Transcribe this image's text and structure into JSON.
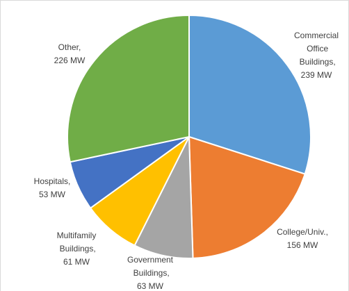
{
  "chart_data": {
    "type": "pie",
    "categories": [
      "Commercial Office Buildings,",
      "College/Univ.,",
      "Government Buildings,",
      "Multifamily Buildings,",
      "Hospitals,",
      "Other,"
    ],
    "values": [
      239,
      156,
      63,
      61,
      53,
      226
    ],
    "value_labels": [
      "239 MW",
      "156 MW",
      "63 MW",
      "61 MW",
      "53 MW",
      "226 MW"
    ],
    "colors": [
      "#5b9bd5",
      "#ed7d31",
      "#a5a5a5",
      "#ffc000",
      "#4472c4",
      "#70ad47"
    ]
  }
}
